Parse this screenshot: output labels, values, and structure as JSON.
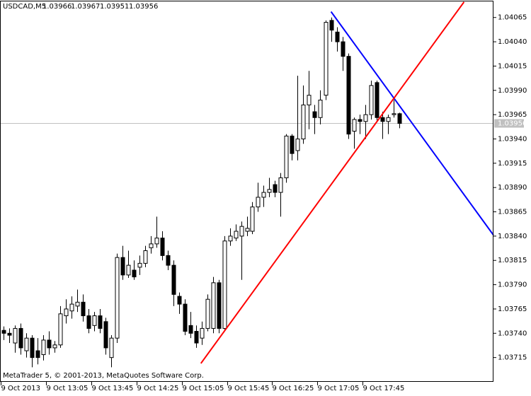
{
  "chart_data": {
    "type": "candlestick",
    "symbol": "USDCAD,M5",
    "footer": "MetaTrader 5, © 2001-2013, MetaQuotes Software Corp.",
    "ylim": [
      1.0369,
      1.04083
    ],
    "xlim": [
      -0.6,
      86.6
    ],
    "yticks": [
      1.04065,
      {
        "value": 1.0404,
        "label": "1.04040"
      },
      1.04015,
      {
        "value": 1.0399,
        "label": "1.03990"
      },
      1.03965,
      {
        "value": 1.0394,
        "label": "1.03940"
      },
      1.03915,
      {
        "value": 1.0389,
        "label": "1.03890"
      },
      1.03865,
      {
        "value": 1.0384,
        "label": "1.03840"
      },
      1.03815,
      {
        "value": 1.0379,
        "label": "1.03790"
      },
      1.03765,
      {
        "value": 1.0374,
        "label": "1.03740"
      },
      1.03715
    ],
    "categories": [
      "9 Oct 2013",
      null,
      null,
      null,
      null,
      null,
      null,
      null,
      "9 Oct 13:05",
      null,
      null,
      null,
      null,
      null,
      null,
      null,
      "9 Oct 13:45",
      null,
      null,
      null,
      null,
      null,
      null,
      null,
      "9 Oct 14:25",
      null,
      null,
      null,
      null,
      null,
      null,
      null,
      "9 Oct 15:05",
      null,
      null,
      null,
      null,
      null,
      null,
      null,
      "9 Oct 15:45",
      null,
      null,
      null,
      null,
      null,
      null,
      null,
      "9 Oct 16:25",
      null,
      null,
      null,
      null,
      null,
      null,
      null,
      "9 Oct 17:05",
      null,
      null,
      null,
      null,
      null,
      null,
      null,
      "9 Oct 17:45",
      null,
      null,
      null,
      null,
      null,
      null
    ],
    "open": [
      1.03743,
      1.0374,
      1.0373,
      1.03745,
      1.03722,
      1.03735,
      1.03722,
      1.03718,
      1.03733,
      1.03725,
      1.03728,
      1.03758,
      1.03763,
      1.03768,
      1.03772,
      1.03758,
      1.03748,
      1.03758,
      1.03752,
      1.03715,
      1.03735,
      1.03818,
      1.038,
      1.03805,
      1.03808,
      1.03812,
      1.03828,
      1.03832,
      1.03838,
      1.0382,
      1.0381,
      1.03778,
      1.0377,
      1.03748,
      1.03742,
      1.03735,
      1.03745,
      1.03745,
      1.03792,
      1.03745,
      1.03835,
      1.03838,
      1.0384,
      1.03845,
      1.03845,
      1.0387,
      1.0388,
      1.03885,
      1.03893,
      1.03885,
      1.039,
      1.03943,
      1.03928,
      1.0394,
      1.03975,
      1.03968,
      1.03962,
      1.03985,
      1.04062,
      1.0405,
      1.0404,
      1.04025,
      1.03948,
      1.0396,
      1.03958,
      1.03965,
      1.03998,
      1.03962,
      1.03958,
      1.03965,
      1.03966
    ],
    "high": [
      1.03747,
      1.03745,
      1.03748,
      1.0375,
      1.0374,
      1.03738,
      1.03735,
      1.03738,
      1.03742,
      1.03732,
      1.03768,
      1.03775,
      1.03778,
      1.03785,
      1.0378,
      1.03765,
      1.03762,
      1.03765,
      1.03756,
      1.03738,
      1.03822,
      1.0383,
      1.03825,
      1.03815,
      1.0382,
      1.0383,
      1.0384,
      1.0386,
      1.03845,
      1.03825,
      1.03815,
      1.03782,
      1.03775,
      1.03762,
      1.03748,
      1.03752,
      1.0378,
      1.03798,
      1.03795,
      1.0384,
      1.03848,
      1.03852,
      1.03855,
      1.0386,
      1.03875,
      1.03895,
      1.03892,
      1.039,
      1.03897,
      1.03905,
      1.03945,
      1.03945,
      1.04005,
      1.03995,
      1.0401,
      1.03975,
      1.0399,
      1.04062,
      1.04065,
      1.04055,
      1.04045,
      1.04028,
      1.03962,
      1.03965,
      1.03975,
      1.04,
      1.04,
      1.03968,
      1.03965,
      1.0398,
      1.03967
    ],
    "low": [
      1.03733,
      1.0373,
      1.0372,
      1.03718,
      1.03715,
      1.03705,
      1.03708,
      1.03712,
      1.03718,
      1.0372,
      1.03725,
      1.0375,
      1.03755,
      1.03762,
      1.03752,
      1.0374,
      1.03742,
      1.0374,
      1.03718,
      1.03705,
      1.0373,
      1.03795,
      1.03797,
      1.03795,
      1.038,
      1.03808,
      1.03822,
      1.03828,
      1.03815,
      1.03805,
      1.03768,
      1.0376,
      1.03738,
      1.03735,
      1.03725,
      1.03728,
      1.03742,
      1.0374,
      1.0374,
      1.03742,
      1.0383,
      1.03835,
      1.03795,
      1.0384,
      1.03842,
      1.03865,
      1.0387,
      1.0388,
      1.0388,
      1.0386,
      1.03895,
      1.03918,
      1.03918,
      1.03935,
      1.0395,
      1.03945,
      1.03955,
      1.0398,
      1.0404,
      1.0403,
      1.0401,
      1.0394,
      1.0393,
      1.03945,
      1.0394,
      1.0396,
      1.03958,
      1.0394,
      1.03945,
      1.03962,
      1.03951
    ],
    "close": [
      1.0374,
      1.03738,
      1.03745,
      1.03725,
      1.03735,
      1.03715,
      1.03715,
      1.03733,
      1.03725,
      1.03728,
      1.0376,
      1.03765,
      1.0377,
      1.03772,
      1.03758,
      1.03745,
      1.03758,
      1.03745,
      1.03725,
      1.03735,
      1.03818,
      1.038,
      1.0381,
      1.03798,
      1.03812,
      1.03825,
      1.03832,
      1.03838,
      1.0382,
      1.0381,
      1.0378,
      1.0377,
      1.03742,
      1.0374,
      1.0373,
      1.03745,
      1.03775,
      1.03792,
      1.03745,
      1.03835,
      1.0384,
      1.03845,
      1.0385,
      1.03848,
      1.0387,
      1.0388,
      1.03885,
      1.03888,
      1.03885,
      1.039,
      1.03943,
      1.03925,
      1.0394,
      1.03975,
      1.03985,
      1.03962,
      1.0398,
      1.0406,
      1.04052,
      1.0404,
      1.04025,
      1.03945,
      1.0396,
      1.03958,
      1.03965,
      1.03995,
      1.03962,
      1.03958,
      1.03962,
      1.03966,
      1.03956
    ],
    "lines": [
      {
        "color": "#0000ff",
        "x": [
          57.9,
          86.6
        ],
        "y": [
          1.04071,
          1.03841
        ]
      },
      {
        "color": "#ff0000",
        "x": [
          34.9,
          81.4
        ],
        "y": [
          1.03709,
          1.04081
        ]
      }
    ]
  }
}
